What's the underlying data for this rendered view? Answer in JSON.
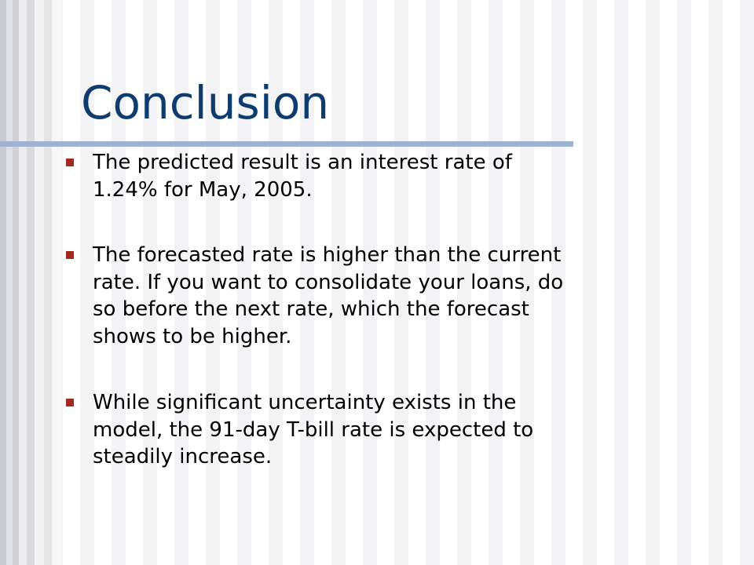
{
  "title": "Conclusion",
  "bullets": [
    {
      "lines": [
        "The predicted result is an interest rate of",
        "1.24% for May, 2005."
      ]
    },
    {
      "lines": [
        "The forecasted rate is higher than the current",
        "rate. If you want to consolidate your loans, do",
        "so before the next rate, which the forecast",
        "shows to be higher."
      ]
    },
    {
      "lines": [
        "While significant uncertainty exists in the",
        "model, the 91-day T-bill rate is expected to",
        "steadily increase."
      ]
    }
  ]
}
